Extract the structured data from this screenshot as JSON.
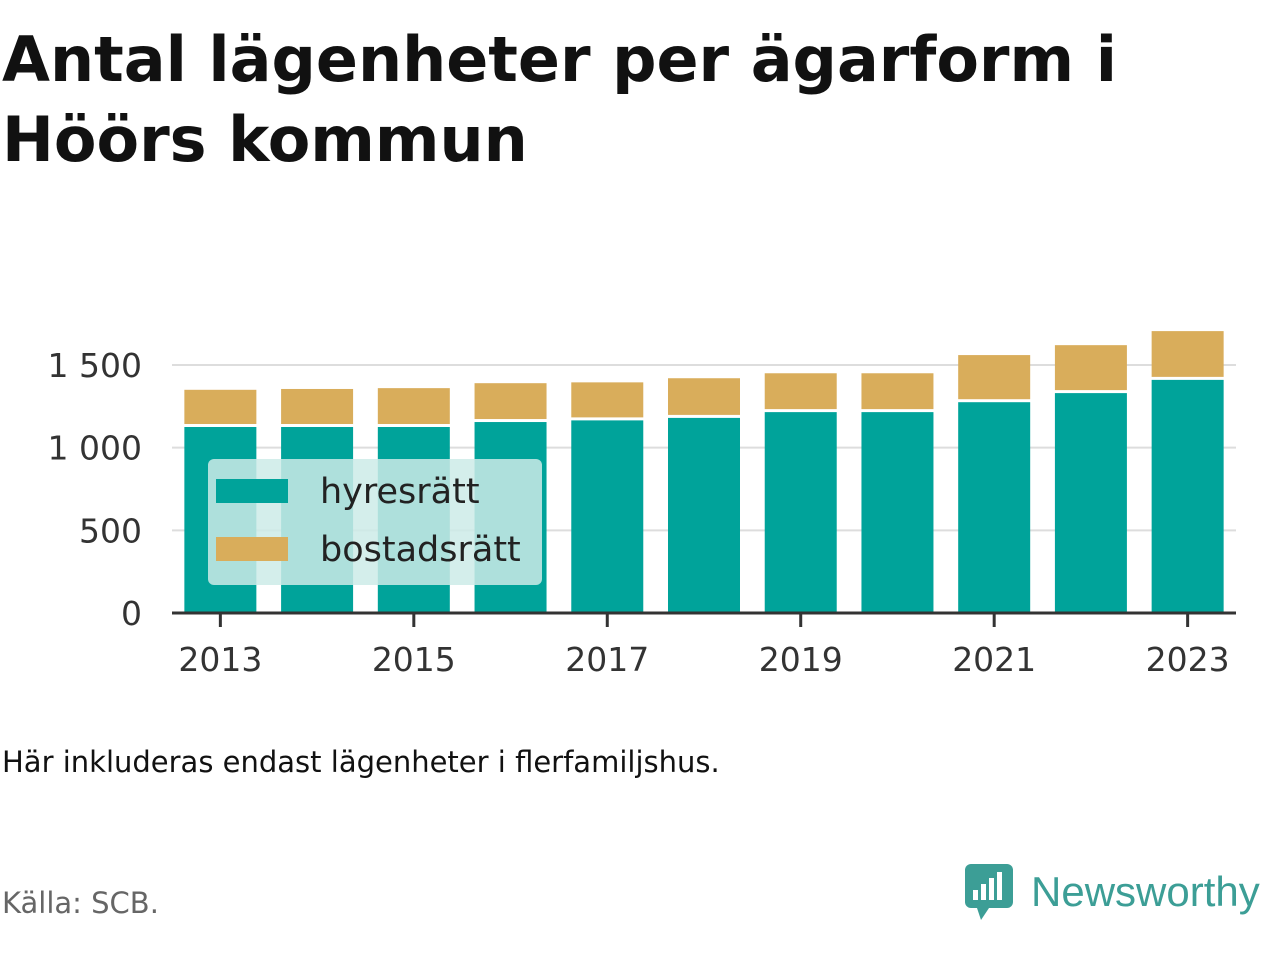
{
  "title": "Antal lägenheter per ägarform i Höörs kommun",
  "note": "Här inkluderas endast lägenheter i flerfamiljshus.",
  "source": "Källa: SCB.",
  "brand": {
    "name": "Newsworthy",
    "icon": "newsworthy-logo-icon"
  },
  "colors": {
    "hyresratt": "#00a39a",
    "bostadsratt": "#d9ad5b",
    "legend_bg": "#cdebe8",
    "axis": "#333333",
    "grid": "#dddddd",
    "brand": "#3c9e96"
  },
  "chart_data": {
    "type": "bar",
    "stacked": true,
    "categories": [
      "2013",
      "2014",
      "2015",
      "2016",
      "2017",
      "2018",
      "2019",
      "2020",
      "2021",
      "2022",
      "2023"
    ],
    "x_tick_labels": [
      "2013",
      "2015",
      "2017",
      "2019",
      "2021",
      "2023"
    ],
    "y_ticks": [
      0,
      500,
      1000,
      1500
    ],
    "y_tick_labels": [
      "0",
      "500",
      "1 000",
      "1 500"
    ],
    "ylim": [
      0,
      1750
    ],
    "grid": true,
    "legend_position": "bottom-left inside",
    "series": [
      {
        "name": "hyresrätt",
        "values": [
          1125,
          1125,
          1125,
          1155,
          1165,
          1180,
          1215,
          1215,
          1275,
          1330,
          1410
        ]
      },
      {
        "name": "bostadsrätt",
        "values": [
          225,
          230,
          235,
          235,
          230,
          240,
          235,
          235,
          285,
          290,
          295
        ]
      }
    ]
  }
}
